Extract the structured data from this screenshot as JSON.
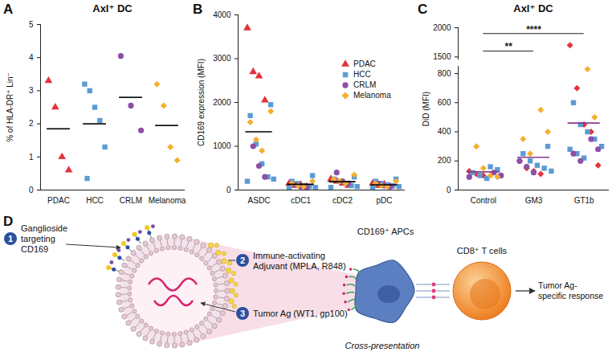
{
  "chart_data": [
    {
      "type": "scatter",
      "panel_label": "A",
      "title": "Axl⁺ DC",
      "y_label": "% of HLA-DR⁺ Lin⁻",
      "categories": [
        "PDAC",
        "HCC",
        "CRLM",
        "Melanoma"
      ],
      "ylim": [
        0,
        5
      ],
      "yticks": [
        0,
        1,
        2,
        3,
        4,
        5
      ],
      "color": "#000000",
      "series": [
        {
          "name": "PDAC",
          "color": "#e2323b",
          "marker": "triangle",
          "values": [
            [
              3.3,
              2.5,
              1.0,
              0.6
            ],
            [],
            [],
            []
          ]
        },
        {
          "name": "HCC",
          "color": "#5b9bd5",
          "marker": "square",
          "values": [
            [],
            [
              3.2,
              3.0,
              2.5,
              2.1,
              1.3,
              0.35
            ],
            [],
            []
          ]
        },
        {
          "name": "CRLM",
          "color": "#8e4fa6",
          "marker": "circle",
          "values": [
            [],
            [],
            [
              4.05,
              2.55,
              1.8
            ],
            []
          ]
        },
        {
          "name": "Melanoma",
          "color": "#f6ae2d",
          "marker": "diamond",
          "values": [
            [],
            [],
            [],
            [
              3.2,
              2.55,
              1.3,
              0.9
            ]
          ]
        }
      ],
      "means": [
        1.85,
        2.0,
        2.8,
        1.95
      ]
    },
    {
      "type": "scatter",
      "panel_label": "B",
      "y_label": "CD169 expression (MFI)",
      "categories": [
        "ASDC",
        "cDC1",
        "cDC2",
        "pDC"
      ],
      "ylim": [
        0,
        4000
      ],
      "yticks": [
        0,
        1000,
        2000,
        3000,
        4000
      ],
      "color": "#000000",
      "legend": "top-right",
      "series": [
        {
          "name": "PDAC",
          "color": "#e2323b",
          "marker": "triangle",
          "values": [
            [
              3700,
              2700,
              2600,
              2050
            ],
            [
              150,
              100,
              120,
              80
            ],
            [
              250,
              200,
              150,
              100
            ],
            [
              150,
              100,
              130,
              80
            ]
          ]
        },
        {
          "name": "HCC",
          "color": "#5b9bd5",
          "marker": "square",
          "values": [
            [
              1950,
              1700,
              1050,
              600,
              300,
              250,
              200
            ],
            [
              330,
              200,
              150,
              100,
              80,
              60,
              50
            ],
            [
              300,
              250,
              200,
              150,
              100,
              80,
              60
            ],
            [
              250,
              200,
              150,
              120,
              100,
              80,
              60
            ]
          ]
        },
        {
          "name": "CRLM",
          "color": "#8e4fa6",
          "marker": "circle",
          "values": [
            [
              1000,
              550,
              300
            ],
            [
              120,
              80,
              50
            ],
            [
              400,
              200,
              150
            ],
            [
              150,
              100,
              80
            ]
          ]
        },
        {
          "name": "Melanoma",
          "color": "#f6ae2d",
          "marker": "diamond",
          "values": [
            [
              1800,
              1550,
              1150,
              900
            ],
            [
              200,
              150,
              100,
              80
            ],
            [
              350,
              250,
              200,
              150
            ],
            [
              200,
              150,
              100,
              80
            ]
          ]
        }
      ],
      "means": [
        1330,
        130,
        190,
        120
      ]
    },
    {
      "type": "scatter",
      "panel_label": "C",
      "title": "Axl⁺ DC",
      "y_label": "DiD (MFI)",
      "categories": [
        "Control",
        "GM3",
        "GT1b"
      ],
      "ylim": [
        0,
        2000
      ],
      "y_break": [
        850,
        1450
      ],
      "yticks": [
        0,
        200,
        400,
        600,
        800,
        1500,
        2000
      ],
      "color": "#8b3a8b",
      "series": [
        {
          "name": "PDAC",
          "color": "#e2323b",
          "marker": "diamond",
          "values": [
            [
              130,
              110,
              100
            ],
            [
              200,
              150,
              130,
              110
            ],
            [
              1700,
              700,
              450,
              400,
              170
            ]
          ]
        },
        {
          "name": "HCC",
          "color": "#5b9bd5",
          "marker": "square",
          "values": [
            [
              160,
              140,
              120,
              100,
              80
            ],
            [
              300,
              250,
              200,
              170,
              150,
              130
            ],
            [
              600,
              450,
              400,
              350,
              300,
              280,
              250,
              220
            ]
          ]
        },
        {
          "name": "CRLM",
          "color": "#8e4fa6",
          "marker": "circle",
          "values": [
            [
              120,
              100,
              90
            ],
            [
              200,
              160,
              120
            ],
            [
              350,
              280,
              250,
              200
            ]
          ]
        },
        {
          "name": "Melanoma",
          "color": "#f6ae2d",
          "marker": "diamond",
          "values": [
            [
              300,
              150,
              100,
              90
            ],
            [
              550,
              400,
              350,
              250
            ],
            [
              830,
              500
            ]
          ]
        }
      ],
      "means": [
        125,
        225,
        460
      ],
      "annotations": [
        {
          "from": "Control",
          "to": "GM3",
          "y": 1600,
          "label": "**"
        },
        {
          "from": "Control",
          "to": "GT1b",
          "y": 1900,
          "label": "****"
        }
      ]
    }
  ],
  "diagram": {
    "panel_label": "D",
    "labels": [
      {
        "number": 1,
        "lines": [
          "Ganglioside",
          "targeting",
          "CD169"
        ]
      },
      {
        "number": 2,
        "lines": [
          "Immune-activating",
          "Adjuvant (MPLA, R848)"
        ]
      },
      {
        "number": 3,
        "lines": [
          "Tumor Ag (WT1, gp100)"
        ]
      }
    ],
    "apc_label": "CD169⁺ APCs",
    "tcell_label": "CD8⁺ T cells",
    "process_label": "Cross-presentation",
    "outcome": [
      "Tumor Ag-",
      "specific response"
    ]
  }
}
